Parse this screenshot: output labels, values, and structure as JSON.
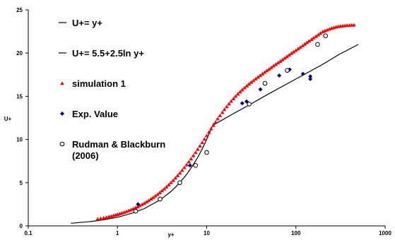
{
  "chart_data": {
    "type": "scatter",
    "title": "",
    "xlabel": "y+",
    "ylabel": "U+",
    "xscale": "log",
    "xlim": [
      0.1,
      1000
    ],
    "ylim": [
      0,
      25
    ],
    "x_ticks": [
      "0.1",
      "1",
      "10",
      "100",
      "1000"
    ],
    "y_ticks": [
      "0",
      "5",
      "10",
      "15",
      "20",
      "25"
    ],
    "grid": false,
    "legend_position": "top-left, inside plot",
    "series": [
      {
        "name": "U+= y+",
        "kind": "line",
        "color": "#000000",
        "x": [
          0.3,
          0.5,
          0.7,
          1,
          1.5,
          2,
          3,
          4,
          5,
          6,
          7,
          8,
          9,
          10,
          11,
          12
        ],
        "y": [
          0.3,
          0.5,
          0.7,
          1,
          1.5,
          2,
          3,
          4,
          5,
          6,
          7,
          8,
          9,
          10,
          11,
          11.9
        ]
      },
      {
        "name": "U+= 5.5+2.5ln y+",
        "kind": "line",
        "color": "#000000",
        "x": [
          12,
          20,
          30,
          50,
          100,
          200,
          300,
          500
        ],
        "y": [
          11.7,
          13.0,
          14.0,
          15.3,
          17.0,
          18.7,
          19.8,
          21.0
        ]
      },
      {
        "name": "simulation 1",
        "kind": "marker",
        "marker": "triangle",
        "color": "#ff0000",
        "x": [
          0.6,
          0.65,
          0.7,
          0.75,
          0.8,
          0.85,
          0.9,
          0.95,
          1.0,
          1.06,
          1.12,
          1.19,
          1.26,
          1.34,
          1.42,
          1.5,
          1.59,
          1.68,
          1.78,
          1.89,
          2.0,
          2.12,
          2.24,
          2.38,
          2.51,
          2.66,
          2.82,
          2.99,
          3.16,
          3.35,
          3.55,
          3.76,
          3.98,
          4.22,
          4.47,
          4.73,
          5.01,
          5.31,
          5.62,
          5.96,
          6.31,
          6.68,
          7.08,
          7.5,
          7.94,
          8.41,
          8.91,
          9.44,
          10.0,
          10.6,
          11.2,
          11.9,
          12.6,
          13.3,
          14.1,
          15.0,
          15.8,
          16.8,
          17.8,
          18.8,
          20.0,
          21.1,
          22.4,
          23.7,
          25.1,
          26.6,
          28.2,
          29.9,
          31.6,
          33.5,
          35.5,
          37.6,
          39.8,
          42.2,
          44.7,
          47.3,
          50.1,
          53.1,
          56.2,
          59.6,
          63.1,
          66.8,
          70.8,
          75.0,
          79.4,
          84.1,
          89.1,
          94.4,
          100,
          106,
          112,
          119,
          126,
          133,
          141,
          150,
          158,
          168,
          178,
          188,
          200,
          211,
          224,
          237,
          251,
          266,
          282,
          299,
          316,
          335,
          355,
          376,
          398,
          422,
          447
        ],
        "y": [
          0.8,
          0.86,
          0.93,
          0.99,
          1.06,
          1.12,
          1.19,
          1.26,
          1.33,
          1.41,
          1.49,
          1.58,
          1.67,
          1.77,
          1.87,
          1.98,
          2.1,
          2.22,
          2.35,
          2.49,
          2.63,
          2.78,
          2.94,
          3.11,
          3.28,
          3.47,
          3.66,
          3.86,
          4.07,
          4.29,
          4.52,
          4.76,
          5.01,
          5.27,
          5.55,
          5.83,
          6.13,
          6.43,
          6.75,
          7.08,
          7.42,
          7.77,
          8.13,
          8.5,
          8.87,
          9.26,
          9.65,
          10.05,
          10.44,
          10.84,
          11.24,
          11.63,
          12.02,
          12.4,
          12.77,
          13.13,
          13.48,
          13.81,
          14.13,
          14.44,
          14.73,
          15.01,
          15.27,
          15.52,
          15.76,
          15.99,
          16.21,
          16.43,
          16.63,
          16.83,
          17.03,
          17.22,
          17.41,
          17.6,
          17.79,
          17.97,
          18.15,
          18.34,
          18.52,
          18.7,
          18.88,
          19.06,
          19.24,
          19.42,
          19.6,
          19.78,
          19.96,
          20.14,
          20.32,
          20.5,
          20.68,
          20.86,
          21.04,
          21.22,
          21.4,
          21.58,
          21.76,
          21.94,
          22.12,
          22.3,
          22.48,
          22.58,
          22.68,
          22.78,
          22.88,
          22.95,
          23.02,
          23.08,
          23.12,
          23.15,
          23.18,
          23.2,
          23.22,
          23.24,
          23.25
        ]
      },
      {
        "name": "Exp. Value",
        "kind": "marker",
        "marker": "diamond",
        "color": "#000080",
        "x": [
          1.7,
          6.5,
          25,
          28,
          40,
          65,
          85,
          120,
          145,
          145
        ],
        "y": [
          2.5,
          7.0,
          14.2,
          14.4,
          15.8,
          17.4,
          18.1,
          17.6,
          17.3,
          17.0
        ]
      },
      {
        "name": "Rudman & Blackburn (2006)",
        "kind": "marker",
        "marker": "open-circle",
        "color": "#000000",
        "x": [
          1.6,
          3,
          5,
          7.5,
          10,
          30,
          45,
          80,
          175,
          215
        ],
        "y": [
          1.7,
          3.1,
          5.0,
          7.0,
          8.5,
          14.1,
          16.5,
          18.0,
          21.0,
          22.0
        ]
      }
    ],
    "legend": [
      {
        "label_lines": [
          "U+= y+"
        ]
      },
      {
        "label_lines": [
          "U+= 5.5+2.5ln y+"
        ]
      },
      {
        "label_lines": [
          "simulation 1"
        ]
      },
      {
        "label_lines": [
          "Exp. Value"
        ]
      },
      {
        "label_lines": [
          "Rudman & Blackburn",
          "(2006)"
        ]
      }
    ]
  }
}
